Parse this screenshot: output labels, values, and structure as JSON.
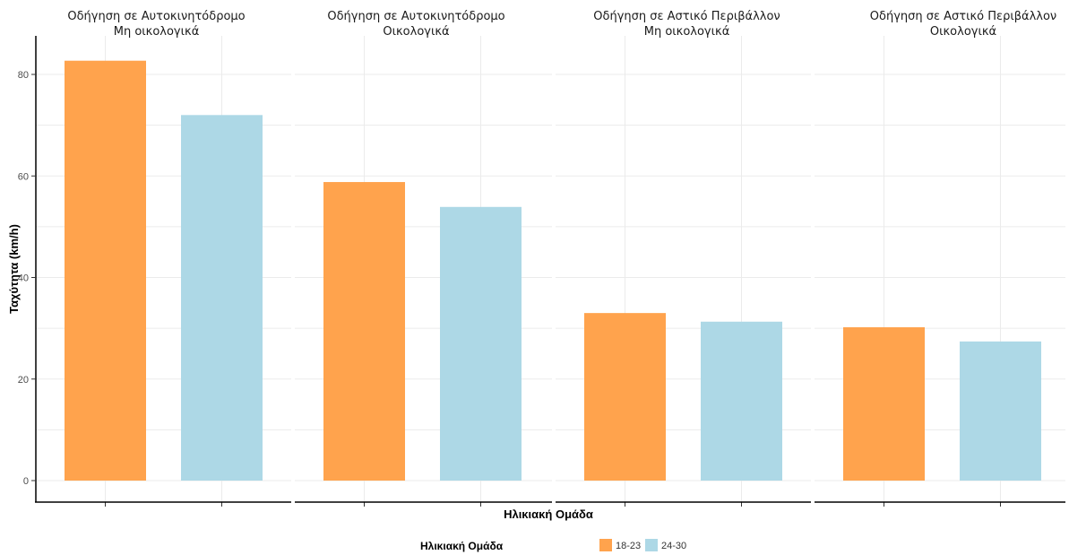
{
  "chart_data": {
    "type": "bar",
    "facets": [
      {
        "title_lines": [
          "Οδήγηση σε Αυτοκινητόδρομο",
          "Μη οικολογικά"
        ],
        "categories": [
          "18-23",
          "24-30"
        ],
        "values": [
          82.7,
          72.0
        ]
      },
      {
        "title_lines": [
          "Οδήγηση σε Αυτοκινητόδρομο",
          "Οικολογικά"
        ],
        "categories": [
          "18-23",
          "24-30"
        ],
        "values": [
          58.8,
          53.9
        ]
      },
      {
        "title_lines": [
          "Οδήγηση σε Αστικό Περιβάλλον",
          "Μη οικολογικά"
        ],
        "categories": [
          "18-23",
          "24-30"
        ],
        "values": [
          33.0,
          31.3
        ]
      },
      {
        "title_lines": [
          "Οδήγηση σε Αστικό Περιβάλλον",
          "Οικολογικά"
        ],
        "categories": [
          "18-23",
          "24-30"
        ],
        "values": [
          30.2,
          27.4
        ]
      }
    ],
    "ylabel": "Ταχύτητα (km/h)",
    "xlabel": "Ηλικιακή Ομάδα",
    "ylim": [
      0,
      87
    ],
    "yticks": [
      0,
      20,
      40,
      60,
      80
    ],
    "grid": true,
    "legend": {
      "title": "Ηλικιακή Ομάδα",
      "placement": "bottom",
      "entries": [
        {
          "label": "18-23",
          "color": "#FFA34D"
        },
        {
          "label": "24-30",
          "color": "#ADD8E6"
        }
      ]
    },
    "colors": {
      "18-23": "#FFA34D",
      "24-30": "#ADD8E6"
    }
  }
}
